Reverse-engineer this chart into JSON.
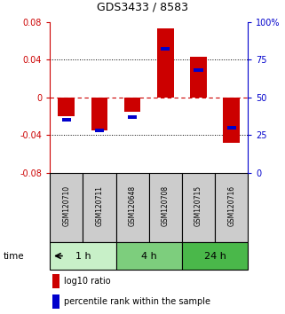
{
  "title": "GDS3433 / 8583",
  "samples": [
    "GSM120710",
    "GSM120711",
    "GSM120648",
    "GSM120708",
    "GSM120715",
    "GSM120716"
  ],
  "log10_ratio": [
    -0.02,
    -0.035,
    -0.015,
    0.073,
    0.043,
    -0.048
  ],
  "percentile": [
    35,
    28,
    37,
    82,
    68,
    30
  ],
  "groups": [
    {
      "label": "1 h",
      "indices": [
        0,
        1
      ],
      "color": "#c8f0c8"
    },
    {
      "label": "4 h",
      "indices": [
        2,
        3
      ],
      "color": "#7dce7d"
    },
    {
      "label": "24 h",
      "indices": [
        4,
        5
      ],
      "color": "#4ab84a"
    }
  ],
  "ylim_left": [
    -0.08,
    0.08
  ],
  "ylim_right": [
    0,
    100
  ],
  "yticks_left": [
    -0.08,
    -0.04,
    0,
    0.04,
    0.08
  ],
  "yticks_right": [
    0,
    25,
    50,
    75,
    100
  ],
  "bar_color_log": "#cc0000",
  "bar_color_pct": "#0000cc",
  "bar_width": 0.5,
  "zero_line_color": "#cc0000",
  "label_color_left": "#cc0000",
  "label_color_right": "#0000cc",
  "sample_box_color": "#cccccc",
  "legend_log_label": "log10 ratio",
  "legend_pct_label": "percentile rank within the sample",
  "time_label": "time"
}
